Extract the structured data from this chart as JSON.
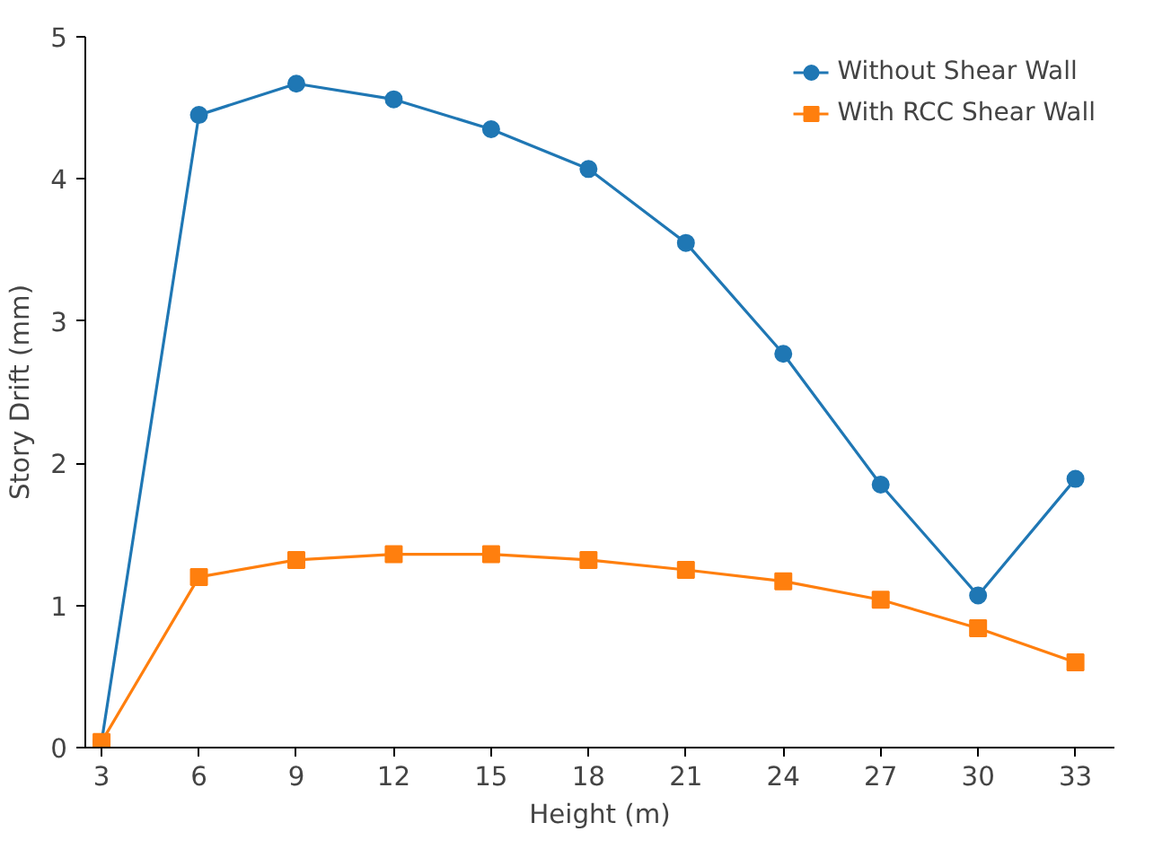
{
  "chart_data": {
    "type": "line",
    "xlabel": "Height (m)",
    "ylabel": "Story Drift (mm)",
    "x": [
      3,
      6,
      9,
      12,
      15,
      18,
      21,
      24,
      27,
      30,
      33
    ],
    "series": [
      {
        "name": "Without Shear Wall",
        "color": "#1f77b4",
        "marker": "circle",
        "values": [
          0.04,
          4.45,
          4.67,
          4.56,
          4.35,
          4.07,
          3.55,
          2.77,
          1.85,
          1.07,
          1.89
        ]
      },
      {
        "name": "With RCC Shear Wall",
        "color": "#ff7f0e",
        "marker": "square",
        "values": [
          0.04,
          1.2,
          1.32,
          1.36,
          1.36,
          1.32,
          1.25,
          1.17,
          1.04,
          0.84,
          0.6
        ]
      }
    ],
    "xlim": [
      2.5,
      34.2
    ],
    "ylim": [
      0,
      5
    ],
    "xticks": [
      3,
      6,
      9,
      12,
      15,
      18,
      21,
      24,
      27,
      30,
      33
    ],
    "yticks": [
      0,
      1,
      2,
      3,
      4,
      5
    ],
    "grid": false,
    "legend": "top right",
    "line_style": "solid"
  }
}
